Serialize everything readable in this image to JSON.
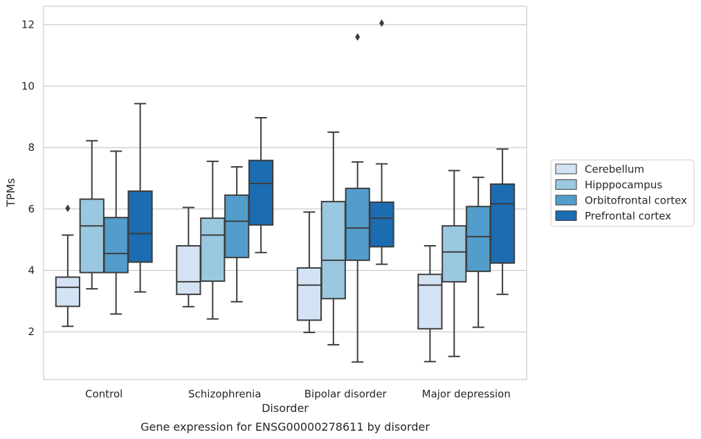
{
  "chart_data": {
    "type": "box",
    "caption": "Gene expression for ENSG00000278611 by disorder",
    "xlabel": "Disorder",
    "ylabel": "TPMs",
    "ylim": [
      0.45,
      12.6
    ],
    "yticks": [
      2,
      4,
      6,
      8,
      10,
      12
    ],
    "grid": true,
    "legend_position": "right",
    "categories": [
      "Control",
      "Schizophrenia",
      "Bipolar disorder",
      "Major depression"
    ],
    "series": [
      {
        "name": "Cerebellum",
        "color": "#d3e3f3",
        "boxes": [
          {
            "whisker_low": 2.18,
            "q1": 2.83,
            "median": 3.45,
            "q3": 3.78,
            "whisker_high": 5.15,
            "outliers": [
              6.02
            ]
          },
          {
            "whisker_low": 2.82,
            "q1": 3.22,
            "median": 3.63,
            "q3": 4.8,
            "whisker_high": 6.05,
            "outliers": []
          },
          {
            "whisker_low": 1.98,
            "q1": 2.38,
            "median": 3.52,
            "q3": 4.08,
            "whisker_high": 5.9,
            "outliers": []
          },
          {
            "whisker_low": 1.03,
            "q1": 2.1,
            "median": 3.52,
            "q3": 3.87,
            "whisker_high": 4.8,
            "outliers": []
          }
        ]
      },
      {
        "name": "Hipppocampus",
        "color": "#9ac8e0",
        "boxes": [
          {
            "whisker_low": 3.4,
            "q1": 3.93,
            "median": 5.45,
            "q3": 6.32,
            "whisker_high": 8.22,
            "outliers": []
          },
          {
            "whisker_low": 2.42,
            "q1": 3.65,
            "median": 5.15,
            "q3": 5.7,
            "whisker_high": 7.55,
            "outliers": []
          },
          {
            "whisker_low": 1.58,
            "q1": 3.08,
            "median": 4.33,
            "q3": 6.24,
            "whisker_high": 8.5,
            "outliers": []
          },
          {
            "whisker_low": 1.2,
            "q1": 3.63,
            "median": 4.6,
            "q3": 5.45,
            "whisker_high": 7.25,
            "outliers": []
          }
        ]
      },
      {
        "name": "Orbitofrontal cortex",
        "color": "#529dcc",
        "boxes": [
          {
            "whisker_low": 2.58,
            "q1": 3.93,
            "median": 4.55,
            "q3": 5.72,
            "whisker_high": 7.88,
            "outliers": []
          },
          {
            "whisker_low": 2.98,
            "q1": 4.42,
            "median": 5.6,
            "q3": 6.45,
            "whisker_high": 7.37,
            "outliers": []
          },
          {
            "whisker_low": 1.02,
            "q1": 4.33,
            "median": 5.38,
            "q3": 6.67,
            "whisker_high": 7.53,
            "outliers": [
              11.6
            ]
          },
          {
            "whisker_low": 2.15,
            "q1": 3.97,
            "median": 5.1,
            "q3": 6.08,
            "whisker_high": 7.03,
            "outliers": []
          }
        ]
      },
      {
        "name": "Prefrontal cortex",
        "color": "#1c6cb1",
        "boxes": [
          {
            "whisker_low": 3.3,
            "q1": 4.27,
            "median": 5.2,
            "q3": 6.58,
            "whisker_high": 9.43,
            "outliers": []
          },
          {
            "whisker_low": 4.58,
            "q1": 5.48,
            "median": 6.83,
            "q3": 7.58,
            "whisker_high": 8.97,
            "outliers": []
          },
          {
            "whisker_low": 4.2,
            "q1": 4.77,
            "median": 5.7,
            "q3": 6.22,
            "whisker_high": 7.47,
            "outliers": [
              12.05
            ]
          },
          {
            "whisker_low": 3.22,
            "q1": 4.24,
            "median": 6.17,
            "q3": 6.81,
            "whisker_high": 7.95,
            "outliers": []
          }
        ]
      }
    ]
  }
}
